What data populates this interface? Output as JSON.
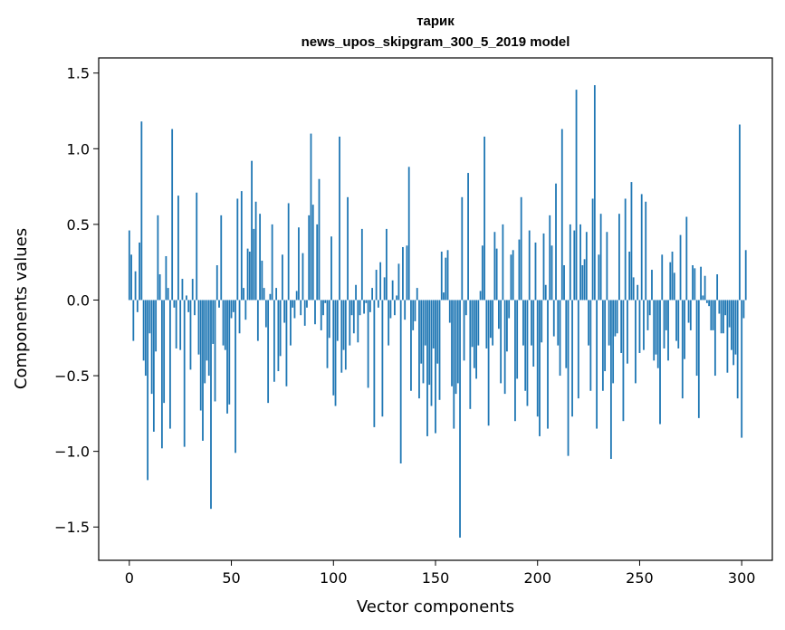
{
  "chart_data": {
    "type": "bar",
    "title": "тарик",
    "subtitle": "news_upos_skipgram_300_5_2019 model",
    "xlabel": "Vector components",
    "ylabel": "Components values",
    "xlim": [
      -15,
      315
    ],
    "ylim": [
      -1.72,
      1.6
    ],
    "grid": false,
    "bar_color": "#1f77b4",
    "x_ticks": [
      0,
      50,
      100,
      150,
      200,
      250,
      300
    ],
    "y_ticks": [
      -1.5,
      -1.0,
      -0.5,
      0.0,
      0.5,
      1.0,
      1.5
    ],
    "y_tick_labels": [
      "−1.5",
      "−1.0",
      "−0.5",
      "0.0",
      "0.5",
      "1.0",
      "1.5"
    ],
    "values": [
      0.46,
      0.3,
      -0.27,
      0.19,
      -0.08,
      0.38,
      1.18,
      -0.4,
      -0.5,
      -1.19,
      -0.22,
      -0.62,
      -0.87,
      -0.34,
      0.56,
      0.17,
      -0.98,
      -0.68,
      0.29,
      0.08,
      -0.85,
      1.13,
      -0.05,
      -0.32,
      0.69,
      -0.33,
      0.14,
      -0.97,
      0.03,
      -0.08,
      -0.46,
      0.14,
      -0.1,
      0.71,
      -0.36,
      -0.73,
      -0.93,
      -0.55,
      -0.4,
      -0.5,
      -1.38,
      -0.29,
      -0.67,
      0.23,
      -0.05,
      0.56,
      -0.3,
      -0.33,
      -0.75,
      -0.69,
      -0.12,
      -0.08,
      -1.01,
      0.67,
      -0.22,
      0.72,
      0.08,
      -0.13,
      0.34,
      0.32,
      0.92,
      0.47,
      0.65,
      -0.27,
      0.57,
      0.26,
      0.08,
      -0.18,
      -0.68,
      0.04,
      0.5,
      -0.54,
      0.08,
      -0.47,
      -0.37,
      0.3,
      -0.15,
      -0.57,
      0.64,
      -0.3,
      -0.05,
      -0.12,
      0.06,
      0.48,
      -0.1,
      0.31,
      -0.17,
      -0.05,
      0.56,
      1.1,
      0.63,
      -0.16,
      0.5,
      0.8,
      -0.2,
      -0.1,
      -0.02,
      -0.45,
      -0.25,
      0.42,
      -0.63,
      -0.7,
      -0.27,
      1.08,
      -0.48,
      -0.33,
      -0.46,
      0.68,
      -0.3,
      -0.1,
      -0.22,
      0.1,
      -0.28,
      -0.1,
      0.47,
      -0.09,
      -0.02,
      -0.58,
      -0.08,
      0.08,
      -0.84,
      0.2,
      -0.05,
      0.25,
      -0.77,
      0.15,
      0.47,
      -0.3,
      -0.12,
      0.13,
      -0.1,
      0.03,
      0.24,
      -1.08,
      0.35,
      -0.13,
      0.36,
      0.88,
      -0.6,
      -0.2,
      -0.14,
      0.08,
      -0.65,
      -0.42,
      -0.55,
      -0.3,
      -0.9,
      -0.56,
      -0.7,
      -0.32,
      -0.88,
      -0.42,
      -0.66,
      0.32,
      0.05,
      0.28,
      0.33,
      -0.15,
      -0.57,
      -0.85,
      -0.62,
      -0.55,
      -1.57,
      0.68,
      -0.4,
      -0.1,
      0.84,
      -0.72,
      -0.31,
      -0.45,
      -0.52,
      -0.3,
      0.06,
      0.36,
      1.08,
      -0.32,
      -0.83,
      -0.25,
      -0.3,
      0.45,
      0.34,
      -0.19,
      -0.55,
      0.5,
      -0.62,
      -0.34,
      -0.12,
      0.3,
      0.33,
      -0.8,
      -0.52,
      0.4,
      0.68,
      -0.3,
      -0.6,
      -0.7,
      0.46,
      -0.3,
      -0.44,
      0.38,
      -0.77,
      -0.9,
      -0.28,
      0.44,
      0.1,
      -0.85,
      0.56,
      0.36,
      -0.24,
      0.77,
      -0.3,
      -0.5,
      1.13,
      0.23,
      -0.45,
      -1.03,
      0.5,
      -0.77,
      0.46,
      1.39,
      -0.65,
      0.5,
      0.23,
      0.27,
      0.45,
      -0.3,
      -0.6,
      0.67,
      1.42,
      -0.85,
      0.3,
      0.57,
      -0.6,
      -0.47,
      0.45,
      -0.3,
      -1.05,
      -0.55,
      -0.24,
      -0.22,
      0.57,
      -0.35,
      -0.8,
      0.67,
      -0.42,
      0.32,
      0.78,
      0.15,
      -0.55,
      0.1,
      -0.35,
      0.7,
      -0.33,
      0.65,
      -0.2,
      -0.1,
      0.2,
      -0.4,
      -0.36,
      -0.45,
      -0.82,
      0.3,
      -0.32,
      -0.2,
      -0.4,
      0.25,
      0.32,
      0.18,
      -0.27,
      -0.32,
      0.43,
      -0.65,
      -0.39,
      0.55,
      -0.15,
      -0.2,
      0.23,
      0.21,
      -0.5,
      -0.78,
      0.22,
      0.03,
      0.16,
      -0.02,
      -0.04,
      -0.2,
      -0.2,
      -0.5,
      0.17,
      -0.09,
      -0.22,
      -0.22,
      -0.1,
      -0.48,
      -0.18,
      -0.33,
      -0.43,
      -0.36,
      -0.65,
      1.16,
      -0.91,
      -0.12,
      0.33
    ]
  }
}
